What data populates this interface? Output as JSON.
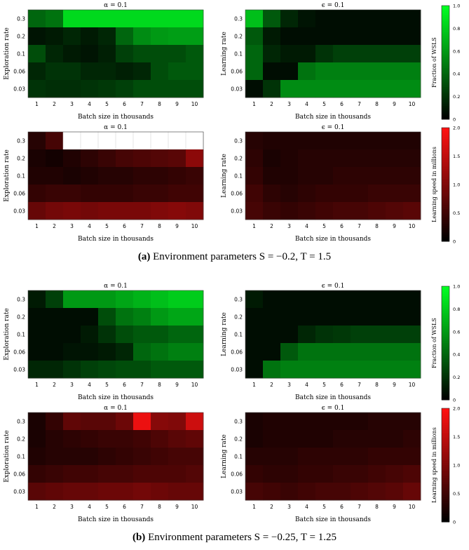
{
  "figure": {
    "captions": [
      {
        "tag": "(a)",
        "text": "Environment parameters S = −0.2, T = 1.5"
      },
      {
        "tag": "(b)",
        "text": "Environment parameters S = −0.25, T = 1.25"
      }
    ]
  },
  "colors": {
    "green_scale": [
      "#000000",
      "#00ff22"
    ],
    "red_scale": [
      "#000000",
      "#ff1111"
    ],
    "missing": "#ffffff"
  },
  "chart_data": [
    {
      "type": "heatmap",
      "panel": "a1",
      "title": "α = 0.1",
      "xlabel": "Batch size in thousands",
      "ylabel": "Exploration rate",
      "x": [
        "1",
        "2",
        "3",
        "4",
        "5",
        "6",
        "7",
        "8",
        "9",
        "10"
      ],
      "y": [
        "0.3",
        "0.2",
        "0.1",
        "0.06",
        "0.03"
      ],
      "scale": "green",
      "values": [
        [
          0.4,
          0.45,
          0.85,
          0.85,
          0.85,
          0.85,
          0.85,
          0.85,
          0.85,
          0.85
        ],
        [
          0.08,
          0.1,
          0.15,
          0.1,
          0.15,
          0.4,
          0.55,
          0.6,
          0.62,
          0.62
        ],
        [
          0.3,
          0.15,
          0.1,
          0.08,
          0.12,
          0.25,
          0.3,
          0.3,
          0.3,
          0.35
        ],
        [
          0.15,
          0.2,
          0.2,
          0.15,
          0.15,
          0.12,
          0.15,
          0.3,
          0.35,
          0.35
        ],
        [
          0.2,
          0.18,
          0.18,
          0.2,
          0.22,
          0.25,
          0.3,
          0.3,
          0.3,
          0.3
        ]
      ]
    },
    {
      "type": "heatmap",
      "panel": "a2",
      "title": "ϵ = 0.1",
      "xlabel": "Batch size in thousands",
      "ylabel": "Learning rate",
      "x": [
        "1",
        "2",
        "3",
        "4",
        "5",
        "6",
        "7",
        "8",
        "9",
        "10"
      ],
      "y": [
        "0.3",
        "0.2",
        "0.1",
        "0.06",
        "0.03"
      ],
      "scale": "green",
      "values": [
        [
          0.75,
          0.35,
          0.15,
          0.08,
          0.05,
          0.05,
          0.05,
          0.05,
          0.05,
          0.05
        ],
        [
          0.35,
          0.1,
          0.05,
          0.05,
          0.05,
          0.05,
          0.05,
          0.05,
          0.05,
          0.05
        ],
        [
          0.4,
          0.15,
          0.1,
          0.1,
          0.2,
          0.25,
          0.25,
          0.25,
          0.25,
          0.25
        ],
        [
          0.4,
          0.05,
          0.05,
          0.45,
          0.5,
          0.5,
          0.5,
          0.5,
          0.5,
          0.5
        ],
        [
          0.05,
          0.2,
          0.55,
          0.55,
          0.55,
          0.55,
          0.55,
          0.55,
          0.55,
          0.55
        ]
      ],
      "colorbar": {
        "label": "Fraction of WSLS",
        "ticks": [
          "0",
          "0.2",
          "0.4",
          "0.6",
          "0.8",
          "1.0"
        ],
        "range": [
          0,
          1.0
        ]
      }
    },
    {
      "type": "heatmap",
      "panel": "a3",
      "title": "α = 0.1",
      "xlabel": "Batch size in thousands",
      "ylabel": "Exploration rate",
      "x": [
        "1",
        "2",
        "3",
        "4",
        "5",
        "6",
        "7",
        "8",
        "9",
        "10"
      ],
      "y": [
        "0.3",
        "0.2",
        "0.1",
        "0.06",
        "0.03"
      ],
      "scale": "red",
      "values": [
        [
          0.3,
          0.55,
          null,
          null,
          null,
          null,
          null,
          null,
          null,
          null
        ],
        [
          0.2,
          0.15,
          0.25,
          0.35,
          0.45,
          0.55,
          0.6,
          0.65,
          0.7,
          1.1
        ],
        [
          0.25,
          0.25,
          0.2,
          0.25,
          0.3,
          0.3,
          0.35,
          0.35,
          0.4,
          0.45
        ],
        [
          0.4,
          0.45,
          0.45,
          0.4,
          0.4,
          0.4,
          0.45,
          0.45,
          0.5,
          0.5
        ],
        [
          0.8,
          0.9,
          0.95,
          0.9,
          0.95,
          0.95,
          0.95,
          1.0,
          1.05,
          1.0
        ]
      ]
    },
    {
      "type": "heatmap",
      "panel": "a4",
      "title": "ϵ = 0.1",
      "xlabel": "Batch size in thousands",
      "ylabel": "Learning rate",
      "x": [
        "1",
        "2",
        "3",
        "4",
        "5",
        "6",
        "7",
        "8",
        "9",
        "10"
      ],
      "y": [
        "0.3",
        "0.2",
        "0.1",
        "0.06",
        "0.03"
      ],
      "scale": "red",
      "values": [
        [
          0.3,
          0.25,
          0.25,
          0.25,
          0.25,
          0.25,
          0.25,
          0.25,
          0.25,
          0.25
        ],
        [
          0.35,
          0.2,
          0.25,
          0.3,
          0.3,
          0.3,
          0.3,
          0.3,
          0.3,
          0.3
        ],
        [
          0.4,
          0.25,
          0.25,
          0.3,
          0.3,
          0.35,
          0.35,
          0.35,
          0.35,
          0.35
        ],
        [
          0.5,
          0.35,
          0.3,
          0.35,
          0.4,
          0.4,
          0.4,
          0.45,
          0.45,
          0.45
        ],
        [
          0.55,
          0.45,
          0.4,
          0.45,
          0.5,
          0.55,
          0.55,
          0.6,
          0.65,
          0.7
        ]
      ],
      "colorbar": {
        "label": "Learning speed in millions",
        "ticks": [
          "0",
          "0.5",
          "1.0",
          "1.5",
          "2.0"
        ],
        "range": [
          0,
          2.0
        ]
      }
    },
    {
      "type": "heatmap",
      "panel": "b1",
      "title": "α = 0.1",
      "xlabel": "Batch size in thousands",
      "ylabel": "Exploration rate",
      "x": [
        "1",
        "2",
        "3",
        "4",
        "5",
        "6",
        "7",
        "8",
        "9",
        "10"
      ],
      "y": [
        "0.3",
        "0.2",
        "0.1",
        "0.06",
        "0.03"
      ],
      "scale": "green",
      "values": [
        [
          0.1,
          0.25,
          0.6,
          0.6,
          0.6,
          0.65,
          0.7,
          0.75,
          0.8,
          0.8
        ],
        [
          0.05,
          0.05,
          0.05,
          0.05,
          0.3,
          0.45,
          0.5,
          0.6,
          0.65,
          0.65
        ],
        [
          0.05,
          0.05,
          0.05,
          0.1,
          0.2,
          0.3,
          0.35,
          0.35,
          0.4,
          0.4
        ],
        [
          0.05,
          0.05,
          0.08,
          0.08,
          0.1,
          0.15,
          0.4,
          0.45,
          0.5,
          0.5
        ],
        [
          0.15,
          0.15,
          0.2,
          0.25,
          0.28,
          0.3,
          0.3,
          0.35,
          0.35,
          0.35
        ]
      ]
    },
    {
      "type": "heatmap",
      "panel": "b2",
      "title": "ϵ = 0.1",
      "xlabel": "Batch size in thousands",
      "ylabel": "Learning rate",
      "x": [
        "1",
        "2",
        "3",
        "4",
        "5",
        "6",
        "7",
        "8",
        "9",
        "10"
      ],
      "y": [
        "0.3",
        "0.2",
        "0.1",
        "0.06",
        "0.03"
      ],
      "scale": "green",
      "values": [
        [
          0.1,
          0.05,
          0.05,
          0.05,
          0.05,
          0.05,
          0.05,
          0.05,
          0.05,
          0.05
        ],
        [
          0.05,
          0.05,
          0.05,
          0.05,
          0.05,
          0.05,
          0.05,
          0.05,
          0.05,
          0.05
        ],
        [
          0.05,
          0.05,
          0.05,
          0.15,
          0.2,
          0.22,
          0.25,
          0.25,
          0.25,
          0.25
        ],
        [
          0.05,
          0.05,
          0.35,
          0.45,
          0.45,
          0.45,
          0.45,
          0.45,
          0.45,
          0.45
        ],
        [
          0.05,
          0.45,
          0.5,
          0.5,
          0.5,
          0.5,
          0.5,
          0.5,
          0.5,
          0.5
        ]
      ],
      "colorbar": {
        "label": "Fraction of WSLS",
        "ticks": [
          "0",
          "0.2",
          "0.4",
          "0.6",
          "0.8",
          "1.0"
        ],
        "range": [
          0,
          1.0
        ]
      }
    },
    {
      "type": "heatmap",
      "panel": "b3",
      "title": "α = 0.1",
      "xlabel": "Batch size in thousands",
      "ylabel": "Exploration rate",
      "x": [
        "1",
        "2",
        "3",
        "4",
        "5",
        "6",
        "7",
        "8",
        "9",
        "10"
      ],
      "y": [
        "0.3",
        "0.2",
        "0.1",
        "0.06",
        "0.03"
      ],
      "scale": "red",
      "values": [
        [
          0.2,
          0.4,
          0.75,
          0.7,
          0.7,
          0.85,
          1.85,
          1.05,
          1.0,
          1.6
        ],
        [
          0.2,
          0.3,
          0.35,
          0.4,
          0.45,
          0.45,
          0.5,
          0.6,
          0.7,
          0.75
        ],
        [
          0.25,
          0.3,
          0.3,
          0.3,
          0.35,
          0.4,
          0.45,
          0.5,
          0.55,
          0.55
        ],
        [
          0.4,
          0.45,
          0.5,
          0.5,
          0.55,
          0.55,
          0.6,
          0.6,
          0.6,
          0.65
        ],
        [
          0.7,
          0.75,
          0.8,
          0.8,
          0.85,
          0.85,
          0.9,
          0.85,
          0.8,
          0.8
        ]
      ]
    },
    {
      "type": "heatmap",
      "panel": "b4",
      "title": "ϵ = 0.1",
      "xlabel": "Batch size in thousands",
      "ylabel": "Learning rate",
      "x": [
        "1",
        "2",
        "3",
        "4",
        "5",
        "6",
        "7",
        "8",
        "9",
        "10"
      ],
      "y": [
        "0.3",
        "0.2",
        "0.1",
        "0.06",
        "0.03"
      ],
      "scale": "red",
      "values": [
        [
          0.2,
          0.25,
          0.25,
          0.25,
          0.25,
          0.25,
          0.25,
          0.3,
          0.3,
          0.3
        ],
        [
          0.2,
          0.25,
          0.25,
          0.25,
          0.25,
          0.3,
          0.3,
          0.3,
          0.3,
          0.35
        ],
        [
          0.3,
          0.3,
          0.3,
          0.35,
          0.35,
          0.35,
          0.35,
          0.4,
          0.4,
          0.4
        ],
        [
          0.4,
          0.35,
          0.35,
          0.4,
          0.4,
          0.45,
          0.45,
          0.5,
          0.55,
          0.6
        ],
        [
          0.55,
          0.5,
          0.45,
          0.5,
          0.55,
          0.55,
          0.6,
          0.65,
          0.7,
          0.8
        ]
      ],
      "colorbar": {
        "label": "Learning speed in millions",
        "ticks": [
          "0",
          "0.5",
          "1.0",
          "1.5",
          "2.0"
        ],
        "range": [
          0,
          2.0
        ]
      }
    }
  ]
}
